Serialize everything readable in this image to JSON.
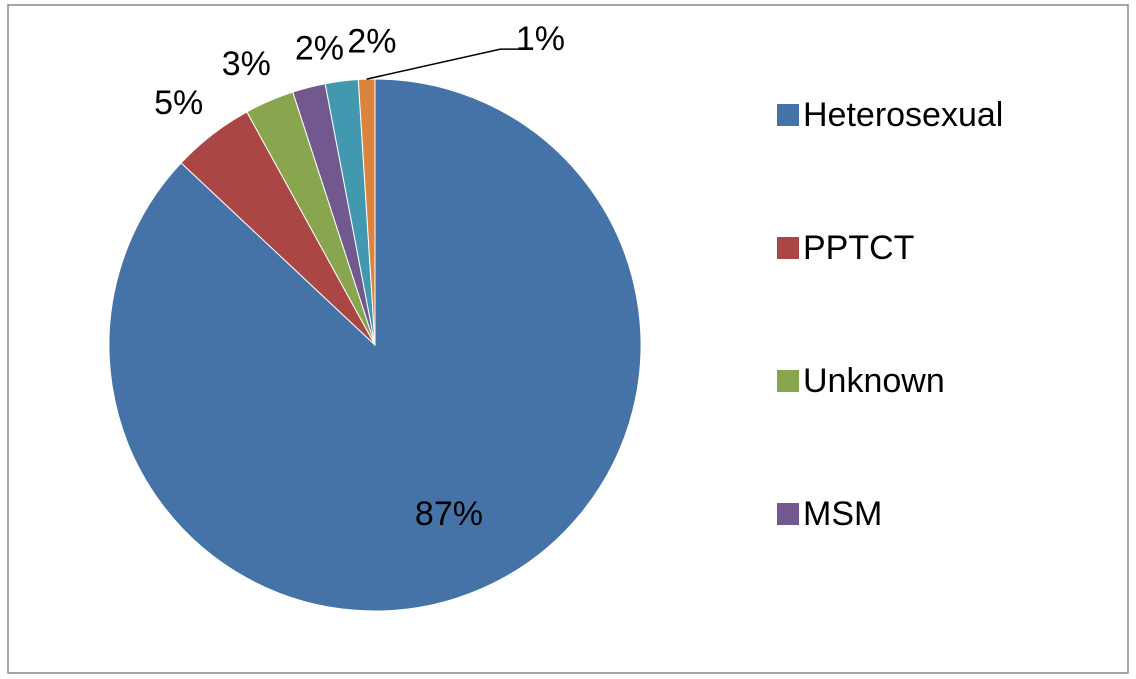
{
  "chart_data": {
    "type": "pie",
    "categories": [
      "Heterosexual",
      "PPTCT",
      "Unknown",
      "MSM",
      null,
      null
    ],
    "values": [
      87,
      5,
      3,
      2,
      2,
      1
    ],
    "value_labels": [
      "87%",
      "5%",
      "3%",
      "2%",
      "2%",
      "1%"
    ],
    "colors": [
      "#4572a7",
      "#aa4643",
      "#89a54e",
      "#71588f",
      "#4198af",
      "#db843d"
    ]
  }
}
